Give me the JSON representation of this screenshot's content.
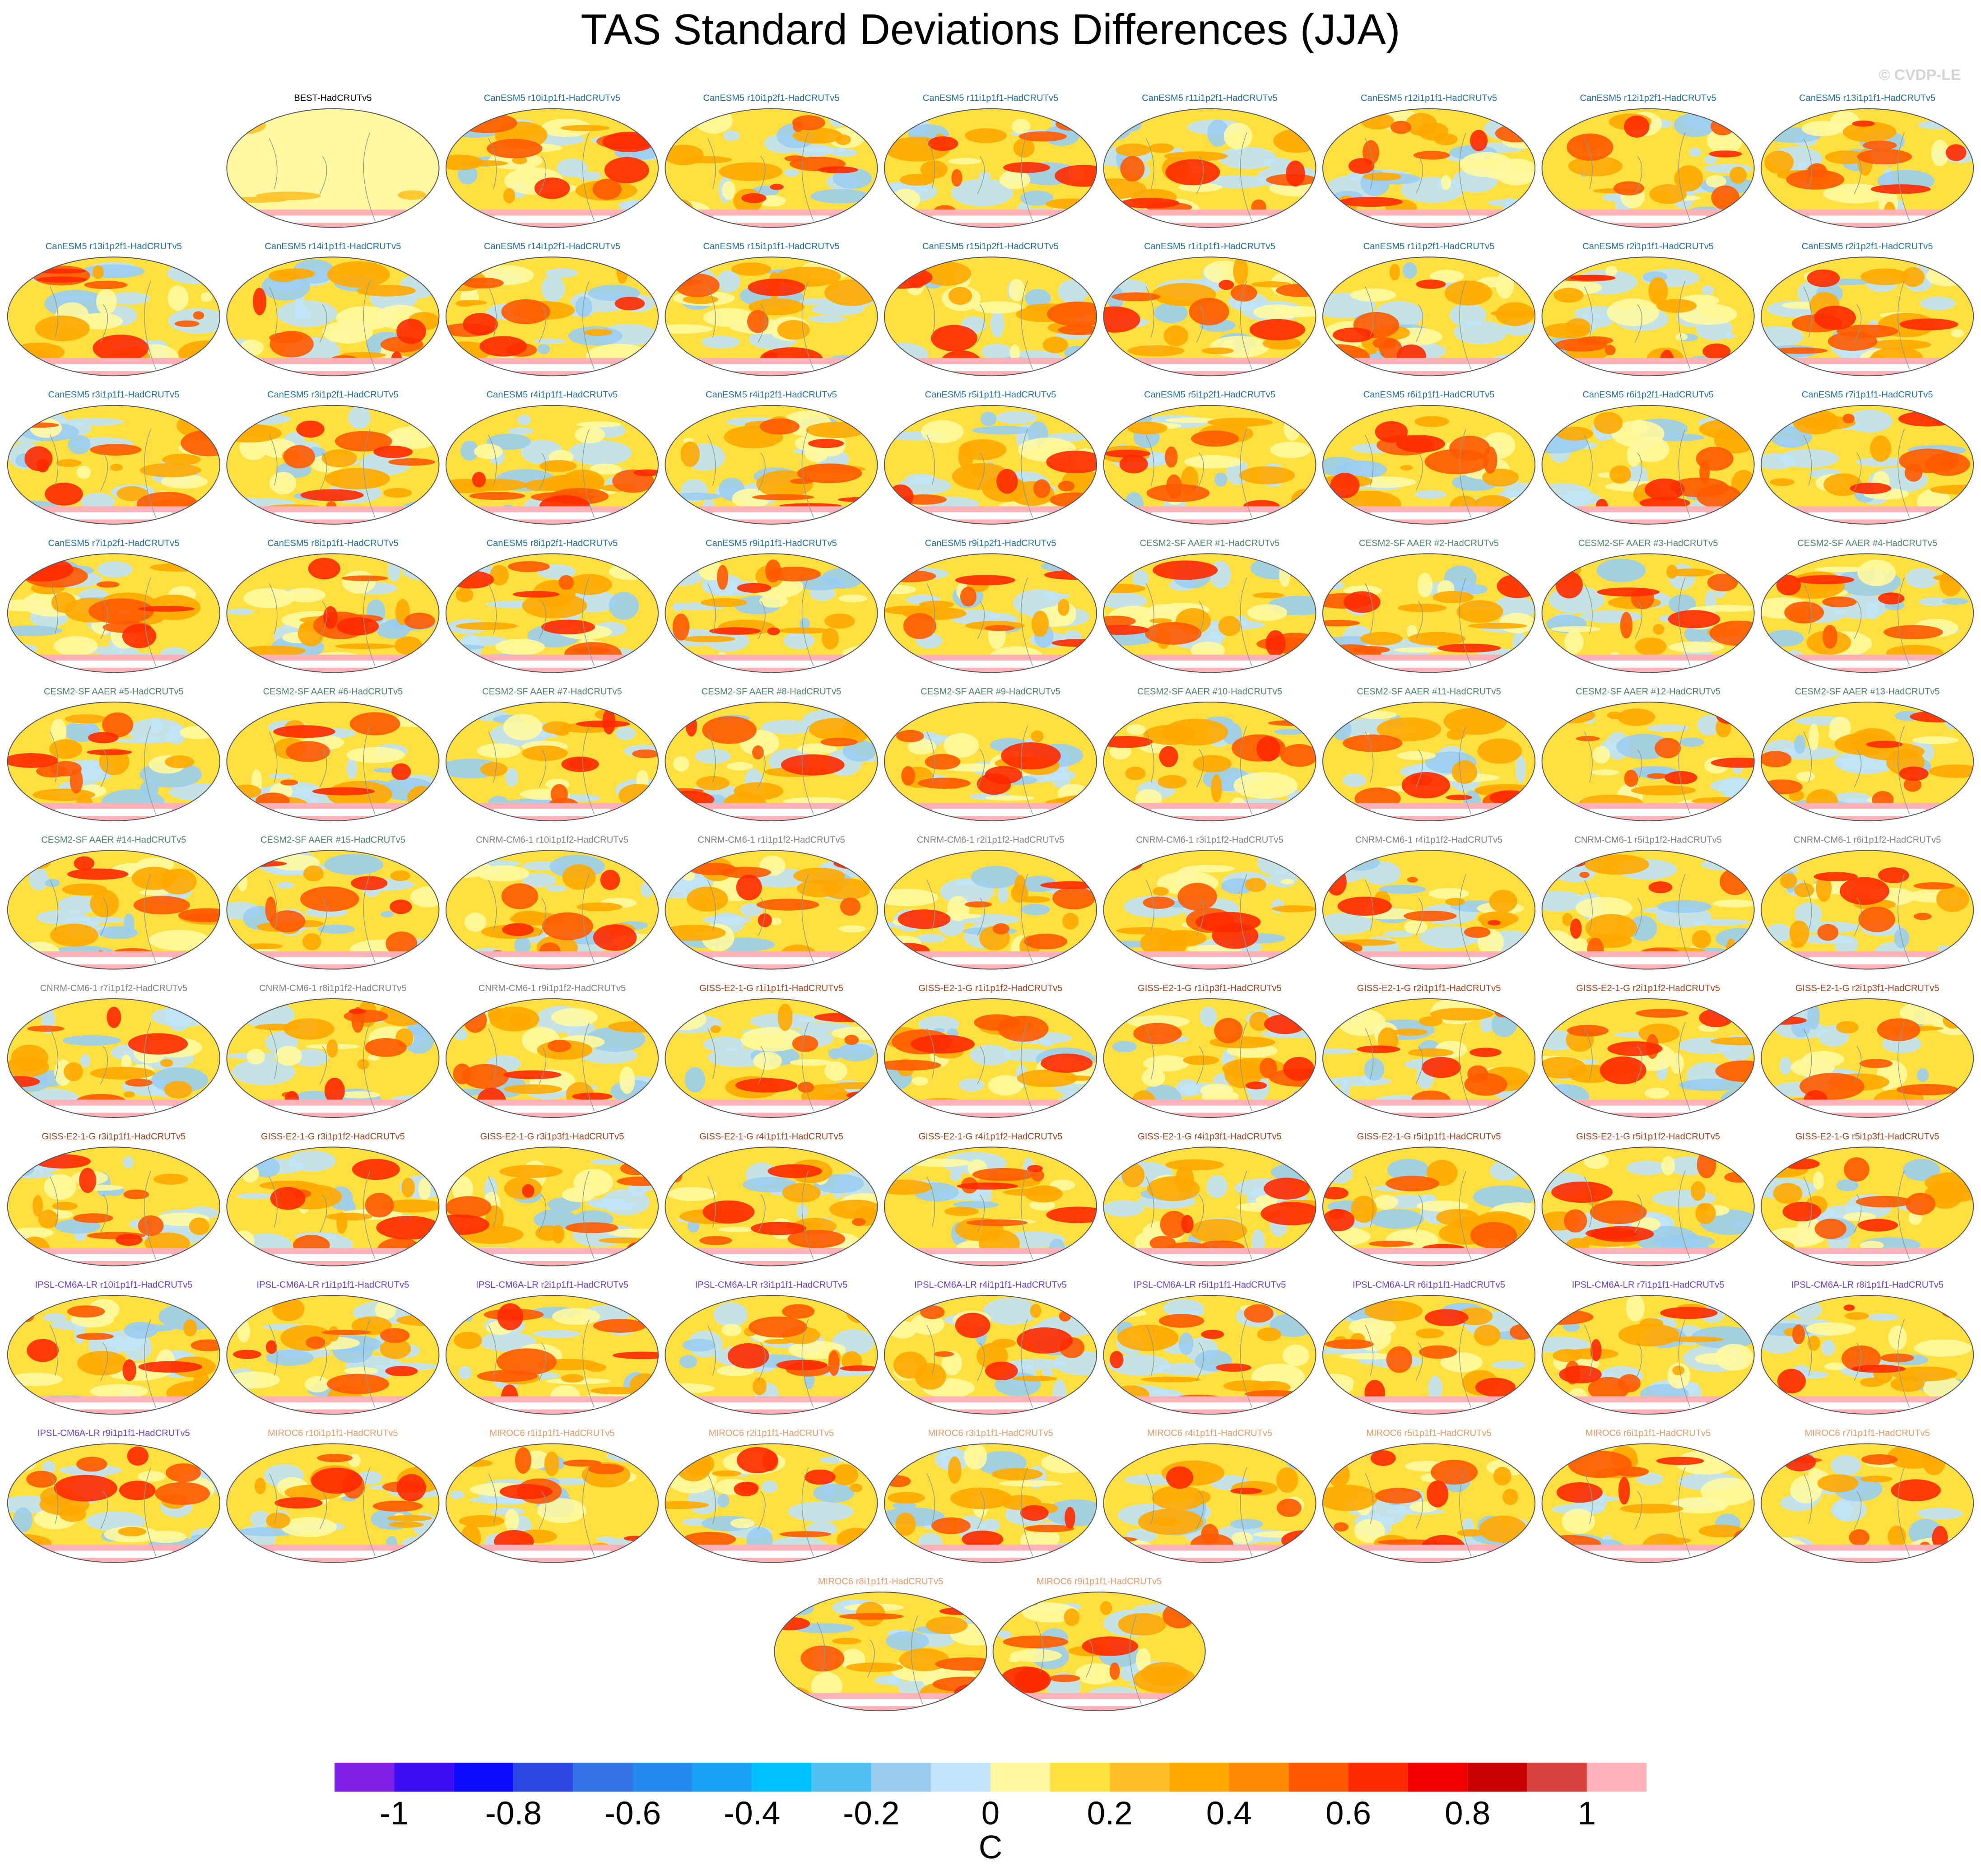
{
  "chart_data": {
    "type": "map-grid",
    "title": "TAS Standard Deviations Differences (JJA)",
    "watermark": "© CVDP-LE",
    "panels": [
      {
        "label": "BEST-HadCRUTv5",
        "color": "#000000"
      },
      {
        "label": "CanESM5 r10i1p1f1-HadCRUTv5",
        "color": "#1f6e9c"
      },
      {
        "label": "CanESM5 r10i1p2f1-HadCRUTv5",
        "color": "#1f6e9c"
      },
      {
        "label": "CanESM5 r11i1p1f1-HadCRUTv5",
        "color": "#1f6e9c"
      },
      {
        "label": "CanESM5 r11i1p2f1-HadCRUTv5",
        "color": "#1f6e9c"
      },
      {
        "label": "CanESM5 r12i1p1f1-HadCRUTv5",
        "color": "#1f6e9c"
      },
      {
        "label": "CanESM5 r12i1p2f1-HadCRUTv5",
        "color": "#1f6e9c"
      },
      {
        "label": "CanESM5 r13i1p1f1-HadCRUTv5",
        "color": "#1f6e9c"
      },
      {
        "label": "CanESM5 r13i1p2f1-HadCRUTv5",
        "color": "#1f6e9c"
      },
      {
        "label": "CanESM5 r14i1p1f1-HadCRUTv5",
        "color": "#1f6e9c"
      },
      {
        "label": "CanESM5 r14i1p2f1-HadCRUTv5",
        "color": "#1f6e9c"
      },
      {
        "label": "CanESM5 r15i1p1f1-HadCRUTv5",
        "color": "#1f6e9c"
      },
      {
        "label": "CanESM5 r15i1p2f1-HadCRUTv5",
        "color": "#1f6e9c"
      },
      {
        "label": "CanESM5 r1i1p1f1-HadCRUTv5",
        "color": "#1f6e9c"
      },
      {
        "label": "CanESM5 r1i1p2f1-HadCRUTv5",
        "color": "#1f6e9c"
      },
      {
        "label": "CanESM5 r2i1p1f1-HadCRUTv5",
        "color": "#1f6e9c"
      },
      {
        "label": "CanESM5 r2i1p2f1-HadCRUTv5",
        "color": "#1f6e9c"
      },
      {
        "label": "CanESM5 r3i1p1f1-HadCRUTv5",
        "color": "#1f6e9c"
      },
      {
        "label": "CanESM5 r3i1p2f1-HadCRUTv5",
        "color": "#1f6e9c"
      },
      {
        "label": "CanESM5 r4i1p1f1-HadCRUTv5",
        "color": "#1f6e9c"
      },
      {
        "label": "CanESM5 r4i1p2f1-HadCRUTv5",
        "color": "#1f6e9c"
      },
      {
        "label": "CanESM5 r5i1p1f1-HadCRUTv5",
        "color": "#1f6e9c"
      },
      {
        "label": "CanESM5 r5i1p2f1-HadCRUTv5",
        "color": "#1f6e9c"
      },
      {
        "label": "CanESM5 r6i1p1f1-HadCRUTv5",
        "color": "#1f6e9c"
      },
      {
        "label": "CanESM5 r6i1p2f1-HadCRUTv5",
        "color": "#1f6e9c"
      },
      {
        "label": "CanESM5 r7i1p1f1-HadCRUTv5",
        "color": "#1f6e9c"
      },
      {
        "label": "CanESM5 r7i1p2f1-HadCRUTv5",
        "color": "#1f6e9c"
      },
      {
        "label": "CanESM5 r8i1p1f1-HadCRUTv5",
        "color": "#1f6e9c"
      },
      {
        "label": "CanESM5 r8i1p2f1-HadCRUTv5",
        "color": "#1f6e9c"
      },
      {
        "label": "CanESM5 r9i1p1f1-HadCRUTv5",
        "color": "#1f6e9c"
      },
      {
        "label": "CanESM5 r9i1p2f1-HadCRUTv5",
        "color": "#1f6e9c"
      },
      {
        "label": "CESM2-SF AAER #1-HadCRUTv5",
        "color": "#4f7f6f"
      },
      {
        "label": "CESM2-SF AAER #2-HadCRUTv5",
        "color": "#4f7f6f"
      },
      {
        "label": "CESM2-SF AAER #3-HadCRUTv5",
        "color": "#4f7f6f"
      },
      {
        "label": "CESM2-SF AAER #4-HadCRUTv5",
        "color": "#4f7f6f"
      },
      {
        "label": "CESM2-SF AAER #5-HadCRUTv5",
        "color": "#4f7f6f"
      },
      {
        "label": "CESM2-SF AAER #6-HadCRUTv5",
        "color": "#4f7f6f"
      },
      {
        "label": "CESM2-SF AAER #7-HadCRUTv5",
        "color": "#4f7f6f"
      },
      {
        "label": "CESM2-SF AAER #8-HadCRUTv5",
        "color": "#4f7f6f"
      },
      {
        "label": "CESM2-SF AAER #9-HadCRUTv5",
        "color": "#4f7f6f"
      },
      {
        "label": "CESM2-SF AAER #10-HadCRUTv5",
        "color": "#4f7f6f"
      },
      {
        "label": "CESM2-SF AAER #11-HadCRUTv5",
        "color": "#4f7f6f"
      },
      {
        "label": "CESM2-SF AAER #12-HadCRUTv5",
        "color": "#4f7f6f"
      },
      {
        "label": "CESM2-SF AAER #13-HadCRUTv5",
        "color": "#4f7f6f"
      },
      {
        "label": "CESM2-SF AAER #14-HadCRUTv5",
        "color": "#4f7f6f"
      },
      {
        "label": "CESM2-SF AAER #15-HadCRUTv5",
        "color": "#4f7f6f"
      },
      {
        "label": "CNRM-CM6-1 r10i1p1f2-HadCRUTv5",
        "color": "#808080"
      },
      {
        "label": "CNRM-CM6-1 r1i1p1f2-HadCRUTv5",
        "color": "#808080"
      },
      {
        "label": "CNRM-CM6-1 r2i1p1f2-HadCRUTv5",
        "color": "#808080"
      },
      {
        "label": "CNRM-CM6-1 r3i1p1f2-HadCRUTv5",
        "color": "#808080"
      },
      {
        "label": "CNRM-CM6-1 r4i1p1f2-HadCRUTv5",
        "color": "#808080"
      },
      {
        "label": "CNRM-CM6-1 r5i1p1f2-HadCRUTv5",
        "color": "#808080"
      },
      {
        "label": "CNRM-CM6-1 r6i1p1f2-HadCRUTv5",
        "color": "#808080"
      },
      {
        "label": "CNRM-CM6-1 r7i1p1f2-HadCRUTv5",
        "color": "#808080"
      },
      {
        "label": "CNRM-CM6-1 r8i1p1f2-HadCRUTv5",
        "color": "#808080"
      },
      {
        "label": "CNRM-CM6-1 r9i1p1f2-HadCRUTv5",
        "color": "#808080"
      },
      {
        "label": "GISS-E2-1-G r1i1p1f1-HadCRUTv5",
        "color": "#a0421e"
      },
      {
        "label": "GISS-E2-1-G r1i1p1f2-HadCRUTv5",
        "color": "#a0421e"
      },
      {
        "label": "GISS-E2-1-G r1i1p3f1-HadCRUTv5",
        "color": "#a0421e"
      },
      {
        "label": "GISS-E2-1-G r2i1p1f1-HadCRUTv5",
        "color": "#a0421e"
      },
      {
        "label": "GISS-E2-1-G r2i1p1f2-HadCRUTv5",
        "color": "#a0421e"
      },
      {
        "label": "GISS-E2-1-G r2i1p3f1-HadCRUTv5",
        "color": "#a0421e"
      },
      {
        "label": "GISS-E2-1-G r3i1p1f1-HadCRUTv5",
        "color": "#a0421e"
      },
      {
        "label": "GISS-E2-1-G r3i1p1f2-HadCRUTv5",
        "color": "#a0421e"
      },
      {
        "label": "GISS-E2-1-G r3i1p3f1-HadCRUTv5",
        "color": "#a0421e"
      },
      {
        "label": "GISS-E2-1-G r4i1p1f1-HadCRUTv5",
        "color": "#a0421e"
      },
      {
        "label": "GISS-E2-1-G r4i1p1f2-HadCRUTv5",
        "color": "#a0421e"
      },
      {
        "label": "GISS-E2-1-G r4i1p3f1-HadCRUTv5",
        "color": "#a0421e"
      },
      {
        "label": "GISS-E2-1-G r5i1p1f1-HadCRUTv5",
        "color": "#a0421e"
      },
      {
        "label": "GISS-E2-1-G r5i1p1f2-HadCRUTv5",
        "color": "#a0421e"
      },
      {
        "label": "GISS-E2-1-G r5i1p3f1-HadCRUTv5",
        "color": "#a0421e"
      },
      {
        "label": "IPSL-CM6A-LR r10i1p1f1-HadCRUTv5",
        "color": "#6a3fcf"
      },
      {
        "label": "IPSL-CM6A-LR r1i1p1f1-HadCRUTv5",
        "color": "#6a3fcf"
      },
      {
        "label": "IPSL-CM6A-LR r2i1p1f1-HadCRUTv5",
        "color": "#6a3fcf"
      },
      {
        "label": "IPSL-CM6A-LR r3i1p1f1-HadCRUTv5",
        "color": "#6a3fcf"
      },
      {
        "label": "IPSL-CM6A-LR r4i1p1f1-HadCRUTv5",
        "color": "#6a3fcf"
      },
      {
        "label": "IPSL-CM6A-LR r5i1p1f1-HadCRUTv5",
        "color": "#6a3fcf"
      },
      {
        "label": "IPSL-CM6A-LR r6i1p1f1-HadCRUTv5",
        "color": "#6a3fcf"
      },
      {
        "label": "IPSL-CM6A-LR r7i1p1f1-HadCRUTv5",
        "color": "#6a3fcf"
      },
      {
        "label": "IPSL-CM6A-LR r8i1p1f1-HadCRUTv5",
        "color": "#6a3fcf"
      },
      {
        "label": "IPSL-CM6A-LR r9i1p1f1-HadCRUTv5",
        "color": "#6a3fcf"
      },
      {
        "label": "MIROC6 r10i1p1f1-HadCRUTv5",
        "color": "#e59a6a"
      },
      {
        "label": "MIROC6 r1i1p1f1-HadCRUTv5",
        "color": "#e59a6a"
      },
      {
        "label": "MIROC6 r2i1p1f1-HadCRUTv5",
        "color": "#e59a6a"
      },
      {
        "label": "MIROC6 r3i1p1f1-HadCRUTv5",
        "color": "#e59a6a"
      },
      {
        "label": "MIROC6 r4i1p1f1-HadCRUTv5",
        "color": "#e59a6a"
      },
      {
        "label": "MIROC6 r5i1p1f1-HadCRUTv5",
        "color": "#e59a6a"
      },
      {
        "label": "MIROC6 r6i1p1f1-HadCRUTv5",
        "color": "#e59a6a"
      },
      {
        "label": "MIROC6 r7i1p1f1-HadCRUTv5",
        "color": "#e59a6a"
      },
      {
        "label": "MIROC6 r8i1p1f1-HadCRUTv5",
        "color": "#e59a6a"
      },
      {
        "label": "MIROC6 r9i1p1f1-HadCRUTv5",
        "color": "#e59a6a"
      }
    ],
    "colorbar": {
      "colors": [
        "#7f1fe8",
        "#3d0ff2",
        "#0a0aff",
        "#2c48e2",
        "#3270e6",
        "#2289f0",
        "#18a2f2",
        "#00bfff",
        "#52c0f0",
        "#9acdf0",
        "#bfe3f7",
        "#fff8a0",
        "#ffe040",
        "#ffc125",
        "#ffa800",
        "#ff8a00",
        "#ff5a00",
        "#ff2a00",
        "#f00000",
        "#c90000",
        "#d94040",
        "#ffb1b8"
      ],
      "levels": [
        -1,
        -0.9,
        -0.8,
        -0.7,
        -0.6,
        -0.5,
        -0.4,
        -0.3,
        -0.2,
        -0.1,
        0,
        0.1,
        0.2,
        0.3,
        0.4,
        0.5,
        0.6,
        0.7,
        0.8,
        0.9,
        1
      ],
      "ticks": [
        -1,
        -0.8,
        -0.6,
        -0.4,
        -0.2,
        0,
        0.2,
        0.4,
        0.6,
        0.8,
        1
      ],
      "label": "C"
    }
  }
}
